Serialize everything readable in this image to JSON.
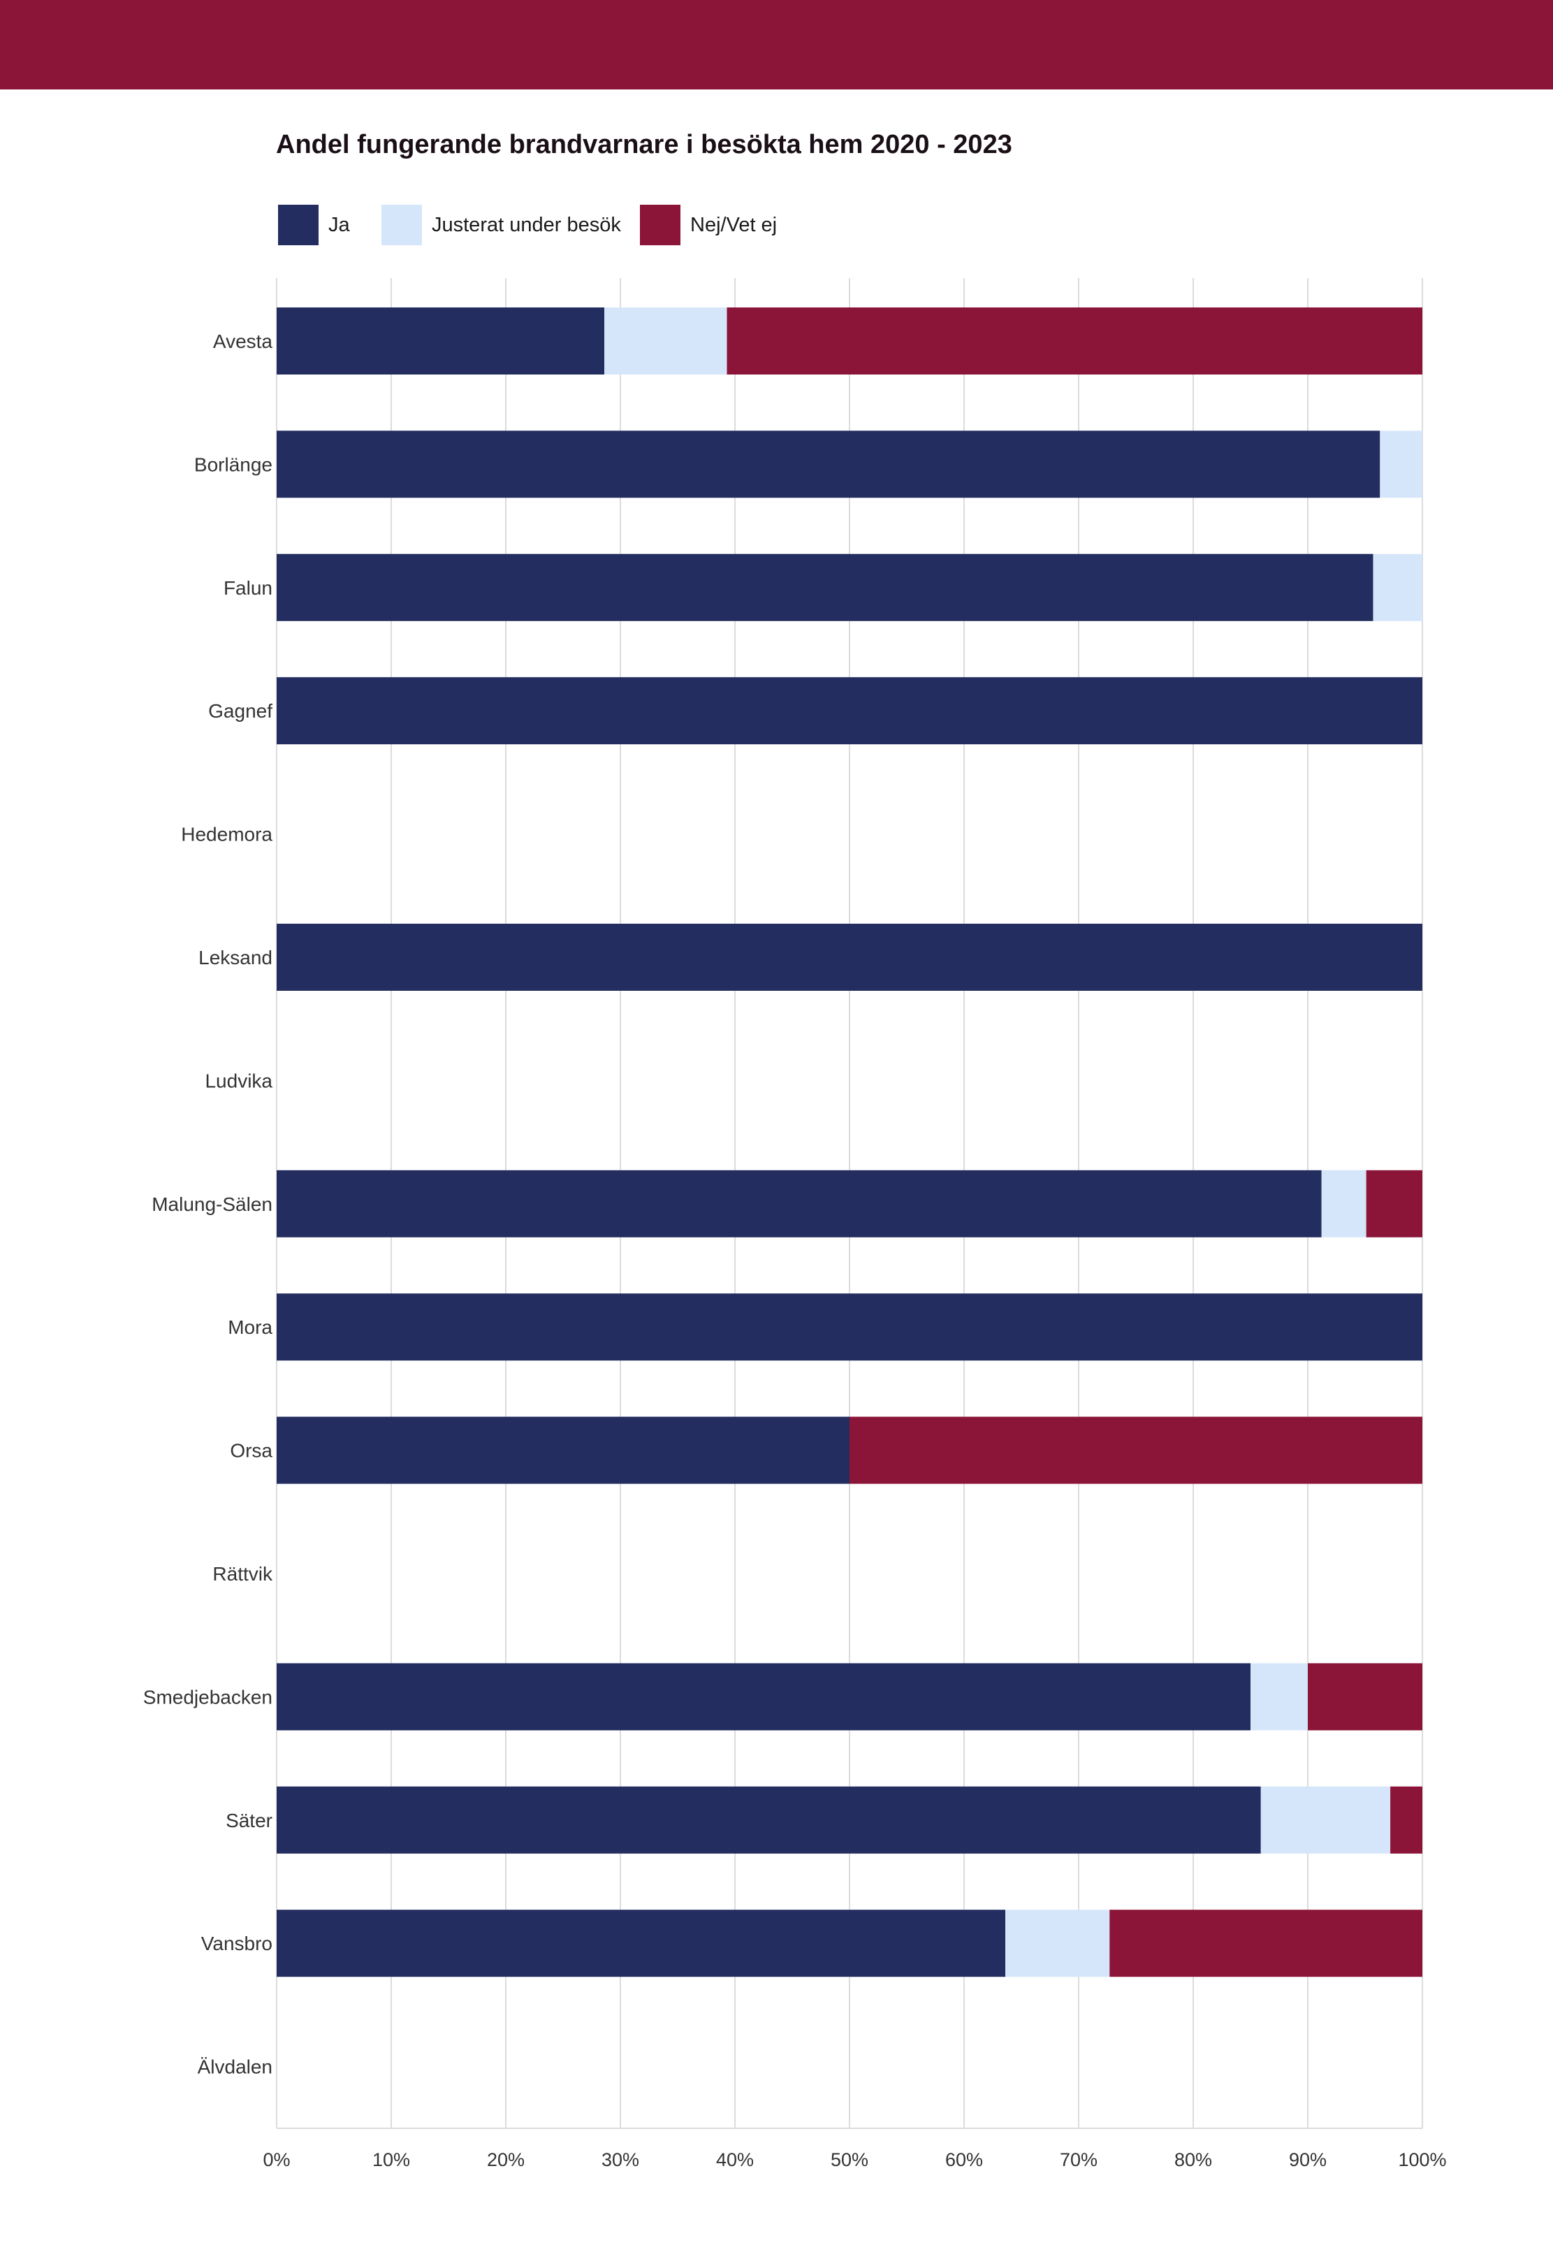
{
  "colors": {
    "banner": "#8b1538",
    "ja": "#232d5f",
    "justerat": "#d6e6fa",
    "nej": "#8b1538",
    "grid": "#dcdcdc",
    "axis_text": "#333333"
  },
  "chart_data": {
    "type": "bar",
    "orientation": "horizontal",
    "stacked": true,
    "title": "Andel fungerande brandvarnare i besökta hem 2020 - 2023",
    "categories": [
      "Avesta",
      "Borlänge",
      "Falun",
      "Gagnef",
      "Hedemora",
      "Leksand",
      "Ludvika",
      "Malung-Sälen",
      "Mora",
      "Orsa",
      "Rättvik",
      "Smedjebacken",
      "Säter",
      "Vansbro",
      "Älvdalen"
    ],
    "series": [
      {
        "name": "Ja",
        "color": "#232d5f",
        "values": [
          28.6,
          96.3,
          95.7,
          100,
          null,
          100,
          null,
          91.2,
          100,
          50,
          null,
          85,
          85.9,
          63.6,
          null
        ]
      },
      {
        "name": "Justerat under besök",
        "color": "#d6e6fa",
        "values": [
          10.7,
          3.7,
          4.3,
          0,
          null,
          0,
          null,
          3.9,
          0,
          0,
          null,
          5,
          11.3,
          9.1,
          null
        ]
      },
      {
        "name": "Nej/Vet ej",
        "color": "#8b1538",
        "values": [
          60.7,
          0,
          0,
          0,
          null,
          0,
          null,
          4.9,
          0,
          50,
          null,
          10,
          2.8,
          27.3,
          null
        ]
      }
    ],
    "xlim": [
      0,
      100
    ],
    "x_ticks": [
      "0%",
      "10%",
      "20%",
      "30%",
      "40%",
      "50%",
      "60%",
      "70%",
      "80%",
      "90%",
      "100%"
    ],
    "grid": true,
    "legend_position": "top-left"
  }
}
